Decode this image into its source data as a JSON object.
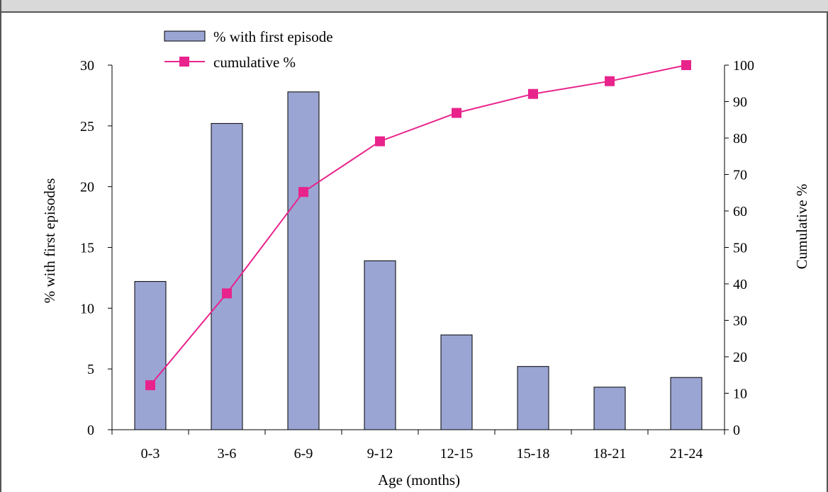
{
  "chart_data": {
    "type": "bar+line",
    "categories": [
      "0-3",
      "3-6",
      "6-9",
      "9-12",
      "12-15",
      "15-18",
      "18-21",
      "21-24"
    ],
    "xlabel": "Age (months)",
    "ylabel_left": "% with first episodes",
    "ylabel_right": "Cumulative %",
    "ylim_left": [
      0,
      30
    ],
    "yticks_left": [
      "0",
      "5",
      "10",
      "15",
      "20",
      "25",
      "30"
    ],
    "ylim_right": [
      0,
      100
    ],
    "yticks_right": [
      "0",
      "10",
      "20",
      "30",
      "40",
      "50",
      "60",
      "70",
      "80",
      "90",
      "100"
    ],
    "series": [
      {
        "name": "% with first episode",
        "type": "bar",
        "axis": "left",
        "color": "#9aa5d4",
        "values": [
          12.2,
          25.2,
          27.8,
          13.9,
          7.8,
          5.2,
          3.5,
          4.3
        ]
      },
      {
        "name": "cumulative %",
        "type": "line",
        "axis": "right",
        "color": "#e8238c",
        "values": [
          12.2,
          37.4,
          65.2,
          79.1,
          86.9,
          92.1,
          95.6,
          100
        ]
      }
    ],
    "legend": "top-left",
    "grid": false
  }
}
